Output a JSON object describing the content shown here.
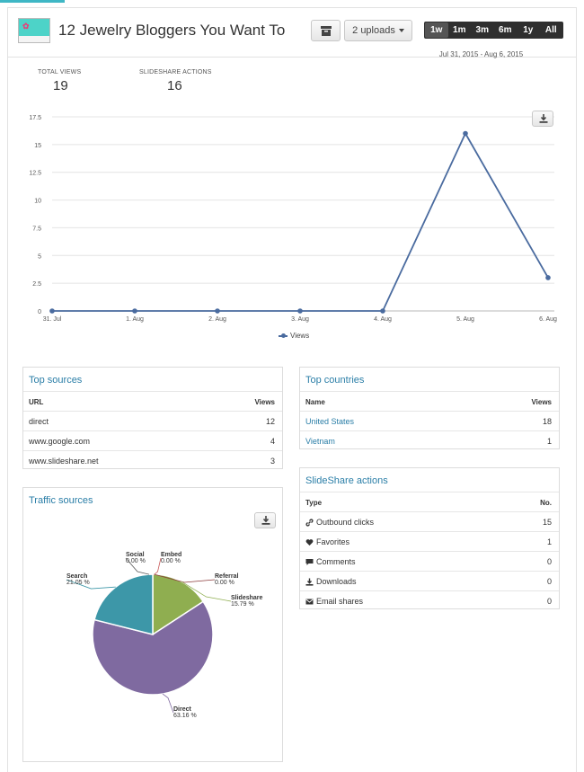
{
  "header": {
    "title": "12 Jewelry Bloggers You Want To",
    "uploads_label": "2 uploads",
    "ranges": [
      "1w",
      "1m",
      "3m",
      "6m",
      "1y",
      "All"
    ],
    "date_range": "Jul 31, 2015 - Aug 6, 2015"
  },
  "stats": {
    "total_views_label": "TOTAL VIEWS",
    "total_views_value": "19",
    "slideshare_actions_label": "SLIDESHARE ACTIONS",
    "slideshare_actions_value": "16"
  },
  "chart_data": [
    {
      "type": "line",
      "x": [
        "31. Jul",
        "1. Aug",
        "2. Aug",
        "3. Aug",
        "4. Aug",
        "5. Aug",
        "6. Aug"
      ],
      "series": [
        {
          "name": "Views",
          "values": [
            0,
            0,
            0,
            0,
            0,
            16,
            3
          ]
        }
      ],
      "yticks": [
        "0",
        "2.5",
        "5",
        "7.5",
        "10",
        "12.5",
        "15",
        "17.5"
      ],
      "ylim": [
        0,
        17.5
      ],
      "grid": true,
      "color": "#4a6b9f"
    },
    {
      "type": "pie",
      "title": "Traffic sources",
      "slices": [
        {
          "label": "Direct",
          "percent_label": "63.16 %",
          "value": 63.16,
          "color": "#7f6aa0"
        },
        {
          "label": "Search",
          "percent_label": "21.05 %",
          "value": 21.05,
          "color": "#3d97a8"
        },
        {
          "label": "Social",
          "percent_label": "0.00 %",
          "value": 0,
          "color": "#5b5b5b"
        },
        {
          "label": "Embed",
          "percent_label": "0.00 %",
          "value": 0,
          "color": "#c85a5a"
        },
        {
          "label": "Referral",
          "percent_label": "0.00 %",
          "value": 0,
          "color": "#8b3a3a"
        },
        {
          "label": "Slideshare",
          "percent_label": "15.79 %",
          "value": 15.79,
          "color": "#8fae50"
        }
      ]
    }
  ],
  "top_sources": {
    "title": "Top sources",
    "col1": "URL",
    "col2": "Views",
    "rows": [
      {
        "url": "direct",
        "views": "12"
      },
      {
        "url": "www.google.com",
        "views": "4"
      },
      {
        "url": "www.slideshare.net",
        "views": "3"
      }
    ]
  },
  "top_countries": {
    "title": "Top countries",
    "col1": "Name",
    "col2": "Views",
    "rows": [
      {
        "name": "United States",
        "views": "18"
      },
      {
        "name": "Vietnam",
        "views": "1"
      }
    ]
  },
  "slideshare_actions": {
    "title": "SlideShare actions",
    "col1": "Type",
    "col2": "No.",
    "rows": [
      {
        "icon": "link-icon",
        "type": "Outbound clicks",
        "count": "15"
      },
      {
        "icon": "heart-icon",
        "type": "Favorites",
        "count": "1"
      },
      {
        "icon": "comment-icon",
        "type": "Comments",
        "count": "0"
      },
      {
        "icon": "download-icon",
        "type": "Downloads",
        "count": "0"
      },
      {
        "icon": "envelope-icon",
        "type": "Email shares",
        "count": "0"
      }
    ]
  }
}
